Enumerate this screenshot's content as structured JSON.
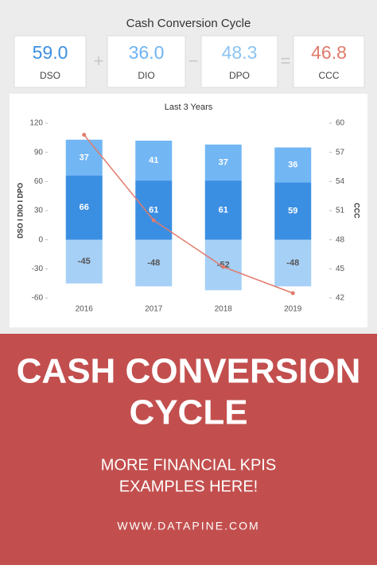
{
  "header": {
    "title": "Cash Conversion Cycle"
  },
  "kpis": [
    {
      "value": "59.0",
      "label": "DSO",
      "color": "#3d8fe0"
    },
    {
      "value": "36.0",
      "label": "DIO",
      "color": "#6fb3f3"
    },
    {
      "value": "48.3",
      "label": "DPO",
      "color": "#8cc4f2"
    },
    {
      "value": "46.8",
      "label": "CCC",
      "color": "#e07b6b"
    }
  ],
  "operators": [
    "+",
    "−",
    "="
  ],
  "chart_data": {
    "type": "stacked_bar_line",
    "title": "Last 3 Years",
    "y_label": "DSO I DIO I DPO",
    "y2_label": "CCC",
    "categories": [
      "2016",
      "2017",
      "2018",
      "2019"
    ],
    "series": [
      {
        "name": "DPO",
        "color": "#a6d0f6",
        "label_color": "#555555",
        "values": [
          -45,
          -48,
          -52,
          -48
        ]
      },
      {
        "name": "DSO",
        "color": "#3b8fe2",
        "label_color": "#ffffff",
        "values": [
          66,
          61,
          61,
          59
        ]
      },
      {
        "name": "DIO",
        "color": "#72b6f4",
        "label_color": "#ffffff",
        "values": [
          37,
          41,
          37,
          36
        ]
      },
      {
        "name": "CCC",
        "color": "#e07b6b",
        "axis": "y2",
        "values": [
          58.8,
          50,
          45.2,
          42.5
        ]
      }
    ],
    "ylim": [
      -60,
      120
    ],
    "yticks": [
      -60,
      -30,
      0,
      30,
      60,
      90,
      120
    ],
    "y2lim": [
      42,
      60
    ],
    "y2ticks": [
      42,
      45,
      48,
      51,
      54,
      57,
      60
    ],
    "grid": false
  },
  "banner": {
    "title_lines": [
      "CASH CONVERSION",
      "CYCLE"
    ],
    "subtitle_lines": [
      "MORE FINANCIAL KPIS",
      "EXAMPLES HERE!"
    ],
    "url": "WWW.DATAPINE.COM"
  }
}
